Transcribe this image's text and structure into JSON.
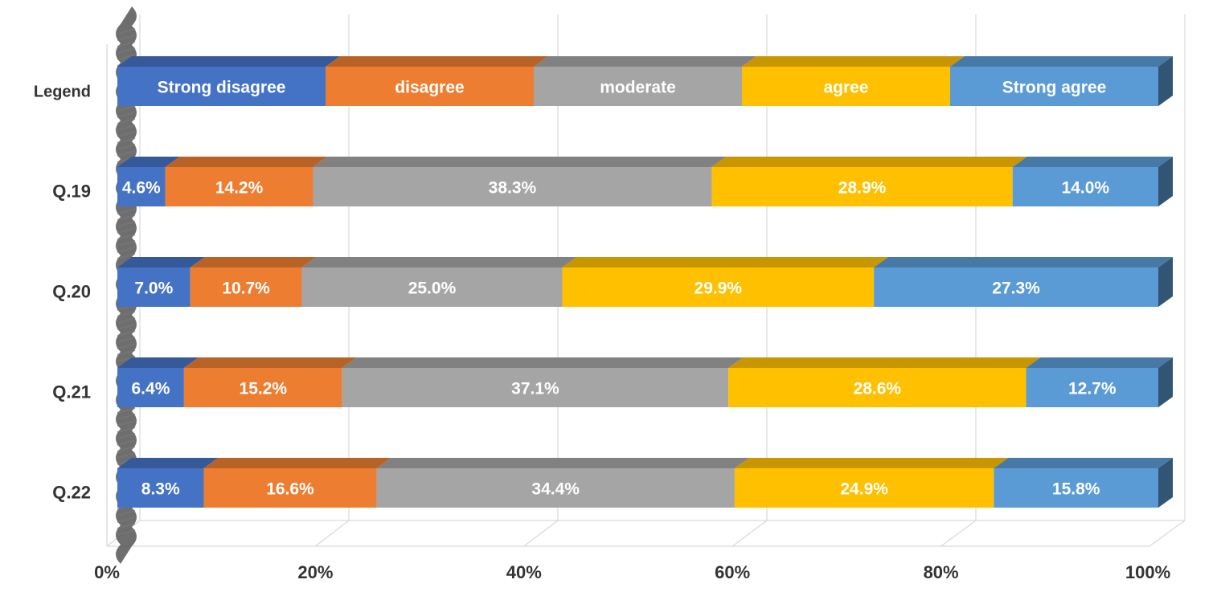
{
  "chart_data": {
    "type": "bar",
    "orientation": "horizontal",
    "stacked": true,
    "percent_stacked": true,
    "three_d": true,
    "title": "",
    "xlabel": "",
    "ylabel": "",
    "xlim": [
      0,
      100
    ],
    "x_ticks": [
      "0%",
      "20%",
      "40%",
      "60%",
      "80%",
      "100%"
    ],
    "grid": true,
    "legend_row": {
      "category": "Legend",
      "labels": [
        "Strong disagree",
        "disagree",
        "moderate",
        "agree",
        "Strong agree"
      ],
      "values": [
        20,
        20,
        20,
        20,
        20
      ]
    },
    "categories": [
      "Q.19",
      "Q.20",
      "Q.21",
      "Q.22"
    ],
    "series": [
      {
        "name": "Strong disagree",
        "color": "#4472C4",
        "values": [
          4.6,
          7.0,
          6.4,
          8.3
        ],
        "labels": [
          "4.6%",
          "7.0%",
          "6.4%",
          "8.3%"
        ]
      },
      {
        "name": "disagree",
        "color": "#ED7D31",
        "values": [
          14.2,
          10.7,
          15.2,
          16.6
        ],
        "labels": [
          "14.2%",
          "10.7%",
          "15.2%",
          "16.6%"
        ]
      },
      {
        "name": "moderate",
        "color": "#A5A5A5",
        "values": [
          38.3,
          25.0,
          37.1,
          34.4
        ],
        "labels": [
          "38.3%",
          "25.0%",
          "37.1%",
          "34.4%"
        ]
      },
      {
        "name": "agree",
        "color": "#FFC000",
        "values": [
          28.9,
          29.9,
          28.6,
          24.9
        ],
        "labels": [
          "28.9%",
          "29.9%",
          "28.6%",
          "24.9%"
        ]
      },
      {
        "name": "Strong agree",
        "color": "#5B9BD5",
        "values": [
          14.0,
          27.3,
          12.7,
          15.8
        ],
        "labels": [
          "14.0%",
          "27.3%",
          "12.7%",
          "15.8%"
        ]
      }
    ]
  }
}
